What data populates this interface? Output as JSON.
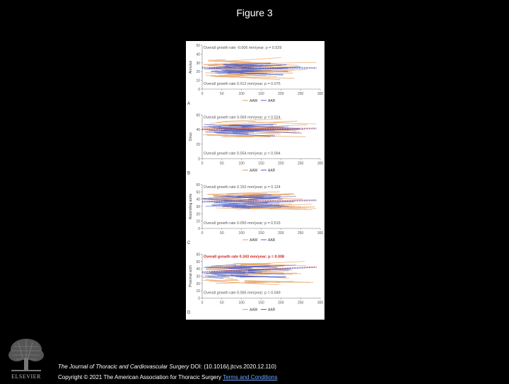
{
  "page": {
    "title": "Figure 3"
  },
  "footer": {
    "journal": "The Journal of Thoracic and Cardiovascular Surgery",
    "doi": " DOI: (10.1016/j.jtcvs.2020.12.110)",
    "copyright": "Copyright © 2021 The American Association for Thoracic Surgery ",
    "terms": "Terms and Conditions"
  },
  "logo": {
    "text": "ELSEVIER"
  },
  "colors": {
    "aaw": "#e8a060",
    "aar": "#5566cc",
    "dotted_blue": "#2233aa",
    "dotted_red": "#cc2222",
    "highlight": "#cc2222"
  },
  "chart_data": [
    {
      "type": "line",
      "panel": "A",
      "ylabel": "Annulus",
      "ylim": [
        0,
        50
      ],
      "yticks": [
        0,
        10,
        20,
        30,
        40,
        50
      ],
      "xlim": [
        0,
        300
      ],
      "xticks": [
        0,
        50,
        100,
        150,
        200,
        250,
        300
      ],
      "legend": [
        "AAW",
        "AAR"
      ],
      "annotations": [
        {
          "text": "Overall growth rate -0.006 mm/year; p = 0.529",
          "highlight": false
        },
        {
          "text": "Overall growth rate 0.012 mm/year; p = 0.075",
          "highlight": false
        }
      ],
      "series": [
        {
          "name": "AAW",
          "band": [
            14,
            34
          ]
        },
        {
          "name": "AAR",
          "band": [
            17,
            29
          ]
        }
      ],
      "trend": [
        [
          0,
          24
        ],
        [
          290,
          23.5
        ]
      ]
    },
    {
      "type": "line",
      "panel": "B",
      "ylabel": "Sinus",
      "ylim": [
        0,
        60
      ],
      "yticks": [
        0,
        20,
        40,
        60
      ],
      "xlim": [
        0,
        300
      ],
      "xticks": [
        0,
        50,
        100,
        150,
        200,
        250,
        300
      ],
      "legend": [
        "AAW",
        "AAR"
      ],
      "annotations": [
        {
          "text": "Overall growth rate 0.069 mm/year; p = 0.524",
          "highlight": false
        },
        {
          "text": "Overall growth rate 0.054 mm/year; p = 0.094",
          "highlight": false
        }
      ],
      "series": [
        {
          "name": "AAW",
          "band": [
            30,
            52
          ]
        },
        {
          "name": "AAR",
          "band": [
            35,
            47
          ]
        }
      ],
      "trend": [
        [
          0,
          40
        ],
        [
          290,
          41
        ]
      ]
    },
    {
      "type": "line",
      "panel": "C",
      "ylabel": "Ascending aorta",
      "ylim": [
        0,
        60
      ],
      "yticks": [
        0,
        10,
        20,
        30,
        40,
        50,
        60
      ],
      "xlim": [
        0,
        300
      ],
      "xticks": [
        0,
        50,
        100,
        150,
        200,
        250,
        300
      ],
      "legend": [
        "AAW",
        "AAR"
      ],
      "annotations": [
        {
          "text": "Overall growth rate 0.152 mm/year; p = 0.124",
          "highlight": false
        },
        {
          "text": "Overall growth rate 0.050 mm/year; p = 0.515",
          "highlight": false
        }
      ],
      "series": [
        {
          "name": "AAW",
          "band": [
            25,
            52
          ]
        },
        {
          "name": "AAR",
          "band": [
            28,
            45
          ]
        }
      ],
      "trend": [
        [
          0,
          36
        ],
        [
          290,
          38
        ]
      ]
    },
    {
      "type": "line",
      "panel": "D",
      "ylabel": "Proximal arch",
      "ylim": [
        0,
        60
      ],
      "yticks": [
        0,
        10,
        20,
        30,
        40,
        50,
        60
      ],
      "xlim": [
        0,
        300
      ],
      "xticks": [
        0,
        50,
        100,
        150,
        200,
        250,
        300
      ],
      "legend": [
        "AAW",
        "AAR"
      ],
      "annotations": [
        {
          "text": "Overall growth rate 0.343 mm/year; p = 0.008",
          "highlight": true
        },
        {
          "text": "Overall growth rate 0.065 mm/year; p = 0.049",
          "highlight": false
        }
      ],
      "series": [
        {
          "name": "AAW",
          "band": [
            20,
            48
          ]
        },
        {
          "name": "AAR",
          "band": [
            28,
            45
          ]
        }
      ],
      "trend": [
        [
          0,
          35
        ],
        [
          290,
          42
        ]
      ]
    }
  ]
}
